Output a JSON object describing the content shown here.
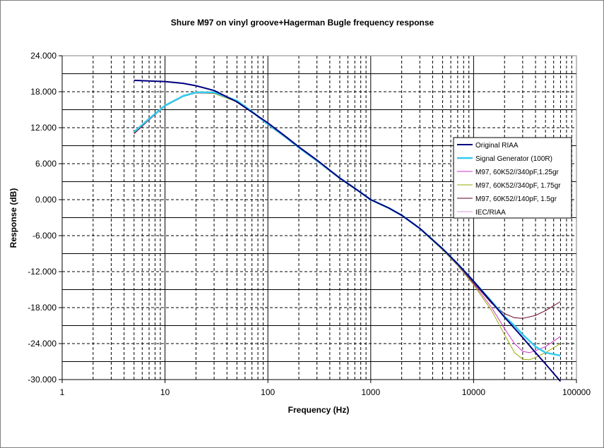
{
  "chart_data": {
    "type": "line",
    "title": "Shure M97 on vinyl groove+Hagerman Bugle frequency response",
    "xlabel": "Frequency (Hz)",
    "ylabel": "Response (dB)",
    "xscale": "log",
    "xlim": [
      1,
      100000
    ],
    "ylim": [
      -30,
      24
    ],
    "x_ticks": [
      "1",
      "10",
      "100",
      "1000",
      "10000",
      "100000"
    ],
    "y_ticks": [
      "24.000",
      "18.000",
      "12.000",
      "6.000",
      "0.000",
      "-6.000",
      "-12.000",
      "-18.000",
      "-24.000",
      "-30.000"
    ],
    "grid": true,
    "legend_position": "right",
    "series": [
      {
        "name": "Original RIAA",
        "color": "#000080",
        "width": 2,
        "x": [
          5,
          7,
          10,
          15,
          20,
          30,
          50,
          70,
          100,
          150,
          200,
          300,
          500,
          700,
          1000,
          1500,
          2000,
          3000,
          5000,
          7000,
          10000,
          15000,
          20000,
          30000,
          40000,
          50000,
          70000
        ],
        "y": [
          19.9,
          19.8,
          19.7,
          19.4,
          19.0,
          18.2,
          16.3,
          14.6,
          12.8,
          10.5,
          8.8,
          6.6,
          3.6,
          1.9,
          0.0,
          -1.4,
          -2.6,
          -4.8,
          -8.2,
          -10.7,
          -13.6,
          -17.1,
          -19.6,
          -23.0,
          -25.5,
          -27.4,
          -30.3
        ]
      },
      {
        "name": "Signal Generator (100R)",
        "color": "#33ccee",
        "width": 2.5,
        "x": [
          5,
          7,
          10,
          15,
          20,
          30,
          50,
          70,
          100,
          150,
          200,
          300,
          500,
          700,
          1000,
          1500,
          2000,
          3000,
          5000,
          7000,
          10000,
          15000,
          20000,
          25000,
          30000,
          40000,
          50000,
          70000
        ],
        "y": [
          11.3,
          13.5,
          15.7,
          17.3,
          17.9,
          17.9,
          16.5,
          14.7,
          12.6,
          10.4,
          8.7,
          6.5,
          3.6,
          1.9,
          0.0,
          -1.4,
          -2.6,
          -4.8,
          -8.2,
          -10.7,
          -13.6,
          -17.0,
          -19.5,
          -21.0,
          -22.5,
          -24.5,
          -25.5,
          -26.0
        ]
      },
      {
        "name": "M97, 60K52//340pF,1.25gr",
        "color": "#cc33cc",
        "width": 1,
        "x": [
          5,
          7,
          10,
          15,
          20,
          30,
          50,
          70,
          100,
          150,
          200,
          300,
          500,
          700,
          1000,
          1500,
          2000,
          3000,
          5000,
          7000,
          10000,
          15000,
          20000,
          25000,
          30000,
          35000,
          40000,
          50000,
          70000
        ],
        "y": [
          11.0,
          13.3,
          15.6,
          17.2,
          17.8,
          17.8,
          16.4,
          14.6,
          12.5,
          10.3,
          8.6,
          6.4,
          3.5,
          1.8,
          0.0,
          -1.4,
          -2.6,
          -4.8,
          -8.3,
          -10.9,
          -14.0,
          -18.0,
          -21.5,
          -24.0,
          -25.3,
          -25.5,
          -25.2,
          -24.5,
          -22.8
        ]
      },
      {
        "name": "M97, 60K52//340pF, 1.75gr",
        "color": "#99aa00",
        "width": 1,
        "x": [
          5,
          7,
          10,
          15,
          20,
          30,
          50,
          70,
          100,
          150,
          200,
          300,
          500,
          700,
          1000,
          1500,
          2000,
          3000,
          5000,
          7000,
          10000,
          15000,
          20000,
          25000,
          30000,
          35000,
          40000,
          50000,
          70000
        ],
        "y": [
          11.1,
          13.4,
          15.6,
          17.2,
          17.8,
          17.7,
          16.3,
          14.6,
          12.5,
          10.3,
          8.6,
          6.4,
          3.5,
          1.8,
          0.0,
          -1.4,
          -2.6,
          -4.9,
          -8.4,
          -11.0,
          -14.2,
          -18.5,
          -22.5,
          -25.5,
          -26.6,
          -26.7,
          -26.3,
          -25.5,
          -24.0
        ]
      },
      {
        "name": "M97, 60K52//140pF, 1.5gr",
        "color": "#660022",
        "width": 1,
        "x": [
          5,
          7,
          10,
          15,
          20,
          30,
          50,
          70,
          100,
          150,
          200,
          300,
          500,
          700,
          1000,
          1500,
          2000,
          3000,
          5000,
          7000,
          10000,
          15000,
          20000,
          25000,
          30000,
          40000,
          50000,
          70000
        ],
        "y": [
          11.0,
          13.3,
          15.6,
          17.2,
          17.8,
          17.8,
          16.4,
          14.6,
          12.5,
          10.3,
          8.6,
          6.4,
          3.5,
          1.8,
          0.0,
          -1.4,
          -2.6,
          -4.8,
          -8.3,
          -10.8,
          -13.9,
          -17.3,
          -19.0,
          -19.7,
          -19.8,
          -19.3,
          -18.5,
          -17.0
        ]
      },
      {
        "name": "IEC/RIAA",
        "color": "#dd99dd",
        "width": 1,
        "x": [
          5,
          7,
          10,
          15,
          20,
          30,
          50,
          70,
          100,
          150,
          200,
          300,
          500,
          700,
          1000,
          1500,
          2000,
          3000,
          5000,
          7000,
          10000,
          15000,
          20000,
          30000,
          40000,
          50000,
          70000
        ],
        "y": [
          11.0,
          13.3,
          15.6,
          17.3,
          17.9,
          18.0,
          16.4,
          14.6,
          12.6,
          10.4,
          8.7,
          6.5,
          3.6,
          1.9,
          0.0,
          -1.4,
          -2.6,
          -4.8,
          -8.2,
          -10.7,
          -13.6,
          -17.1,
          -19.6,
          -23.0,
          -25.5,
          -27.4,
          -30.3
        ]
      }
    ]
  }
}
